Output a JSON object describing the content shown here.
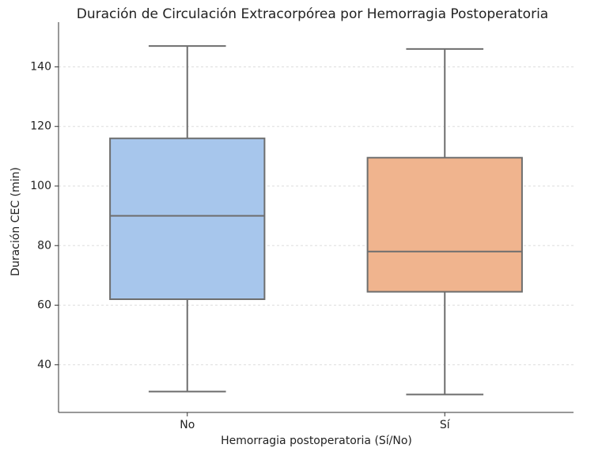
{
  "chart_data": {
    "type": "box",
    "title": "Duración de Circulación Extracorpórea por Hemorragia Postoperatoria",
    "x_label": "Hemorragia postoperatoria (Sí/No)",
    "y_label": "Duración CEC (min)",
    "categories": [
      "No",
      "Sí"
    ],
    "colors": [
      "#a7c6ec",
      "#f0b48e"
    ],
    "whislo": [
      31,
      30
    ],
    "q1": [
      62,
      64.5
    ],
    "med": [
      90,
      78
    ],
    "q3": [
      116,
      109.5
    ],
    "whishi": [
      147,
      146
    ],
    "ylim": [
      24,
      155
    ],
    "yticks": [
      40,
      60,
      80,
      100,
      120,
      140
    ],
    "grid": true
  }
}
